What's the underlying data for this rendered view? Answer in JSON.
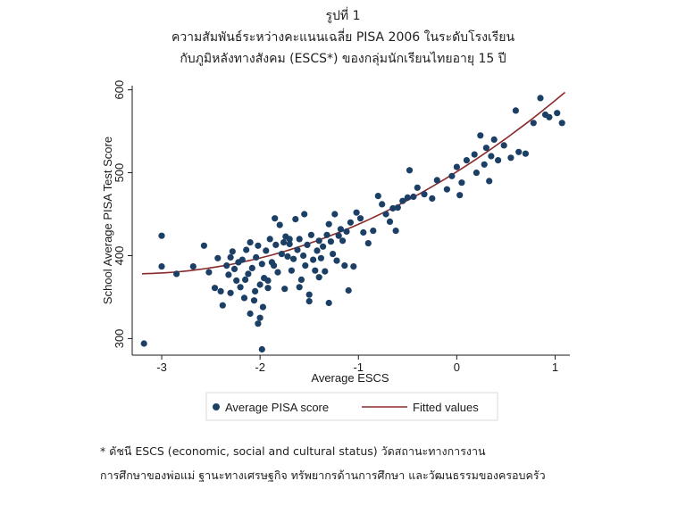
{
  "title": {
    "line1": "รูปที่ 1",
    "line2": "ความสัมพันธ์ระหว่างคะแนนเฉลี่ย PISA 2006 ในระดับโรงเรียน",
    "line3": "กับภูมิหลังทางสังคม (ESCS*) ของกลุ่มนักเรียนไทยอายุ 15 ปี"
  },
  "chart_data": {
    "type": "scatter",
    "xlabel": "Average ESCS",
    "ylabel": "School Average PISA Test Score",
    "xlim": [
      -3.3,
      1.15
    ],
    "ylim": [
      280,
      605
    ],
    "x_ticks": [
      -3,
      -2,
      -1,
      0,
      1
    ],
    "y_ticks": [
      300,
      400,
      500,
      600
    ],
    "x_tick_labels": [
      "-3",
      "-2",
      "-1",
      "0",
      "1"
    ],
    "y_tick_labels": [
      "300",
      "400",
      "500",
      "600"
    ],
    "grid": false,
    "legend_position": "bottom",
    "legend": [
      "Average PISA score",
      "Fitted values"
    ],
    "colors": {
      "points": "#1c3f66",
      "fitted": "#8b2a2a",
      "plot_bg": "#ffffff",
      "outer_bg": "#ffffff"
    },
    "series": [
      {
        "name": "Average PISA score",
        "kind": "scatter",
        "points": [
          [
            -3.18,
            294
          ],
          [
            -3.0,
            424
          ],
          [
            -3.0,
            387
          ],
          [
            -2.85,
            378
          ],
          [
            -2.68,
            387
          ],
          [
            -2.57,
            412
          ],
          [
            -2.52,
            380
          ],
          [
            -2.46,
            361
          ],
          [
            -2.43,
            397
          ],
          [
            -2.4,
            357
          ],
          [
            -2.38,
            340
          ],
          [
            -2.34,
            388
          ],
          [
            -2.32,
            377
          ],
          [
            -2.3,
            398
          ],
          [
            -2.28,
            405
          ],
          [
            -2.26,
            384
          ],
          [
            -2.24,
            370
          ],
          [
            -2.22,
            392
          ],
          [
            -2.2,
            362
          ],
          [
            -2.18,
            395
          ],
          [
            -2.16,
            349
          ],
          [
            -2.14,
            407
          ],
          [
            -2.12,
            378
          ],
          [
            -2.1,
            416
          ],
          [
            -2.08,
            385
          ],
          [
            -2.06,
            346
          ],
          [
            -2.04,
            398
          ],
          [
            -2.02,
            412
          ],
          [
            -2.0,
            365
          ],
          [
            -1.98,
            390
          ],
          [
            -1.96,
            373
          ],
          [
            -1.94,
            406
          ],
          [
            -1.92,
            361
          ],
          [
            -1.9,
            420
          ],
          [
            -1.88,
            392
          ],
          [
            -1.86,
            388
          ],
          [
            -1.84,
            413
          ],
          [
            -1.82,
            380
          ],
          [
            -1.8,
            437
          ],
          [
            -1.78,
            402
          ],
          [
            -1.76,
            416
          ],
          [
            -1.74,
            423
          ],
          [
            -1.72,
            399
          ],
          [
            -1.7,
            414
          ],
          [
            -1.68,
            382
          ],
          [
            -1.66,
            396
          ],
          [
            -1.64,
            444
          ],
          [
            -1.62,
            407
          ],
          [
            -1.6,
            420
          ],
          [
            -1.58,
            371
          ],
          [
            -1.56,
            400
          ],
          [
            -1.54,
            388
          ],
          [
            -1.52,
            413
          ],
          [
            -1.5,
            353
          ],
          [
            -1.48,
            425
          ],
          [
            -1.46,
            395
          ],
          [
            -1.44,
            382
          ],
          [
            -1.42,
            406
          ],
          [
            -1.4,
            418
          ],
          [
            -1.38,
            397
          ],
          [
            -1.36,
            411
          ],
          [
            -1.34,
            381
          ],
          [
            -1.32,
            425
          ],
          [
            -1.3,
            343
          ],
          [
            -1.28,
            417
          ],
          [
            -1.26,
            402
          ],
          [
            -1.24,
            450
          ],
          [
            -1.22,
            394
          ],
          [
            -1.2,
            424
          ],
          [
            -1.18,
            432
          ],
          [
            -1.16,
            418
          ],
          [
            -1.14,
            388
          ],
          [
            -1.12,
            429
          ],
          [
            -1.1,
            358
          ],
          [
            -1.08,
            440
          ],
          [
            -1.05,
            387
          ],
          [
            -1.02,
            452
          ],
          [
            -0.98,
            445
          ],
          [
            -0.95,
            428
          ],
          [
            -0.9,
            415
          ],
          [
            -0.85,
            430
          ],
          [
            -0.8,
            472
          ],
          [
            -0.76,
            462
          ],
          [
            -0.72,
            450
          ],
          [
            -0.68,
            441
          ],
          [
            -0.65,
            457
          ],
          [
            -0.62,
            430
          ],
          [
            -0.6,
            458
          ],
          [
            -0.55,
            466
          ],
          [
            -0.5,
            470
          ],
          [
            -0.48,
            503
          ],
          [
            -0.44,
            471
          ],
          [
            -0.4,
            482
          ],
          [
            -0.33,
            474
          ],
          [
            -0.25,
            469
          ],
          [
            -0.2,
            491
          ],
          [
            -0.1,
            480
          ],
          [
            -0.05,
            496
          ],
          [
            0.0,
            507
          ],
          [
            0.03,
            473
          ],
          [
            0.05,
            488
          ],
          [
            0.1,
            515
          ],
          [
            0.18,
            522
          ],
          [
            0.2,
            500
          ],
          [
            0.24,
            545
          ],
          [
            0.28,
            510
          ],
          [
            0.3,
            530
          ],
          [
            0.33,
            490
          ],
          [
            0.35,
            520
          ],
          [
            0.38,
            540
          ],
          [
            0.42,
            515
          ],
          [
            0.48,
            533
          ],
          [
            0.55,
            518
          ],
          [
            0.6,
            575
          ],
          [
            0.63,
            525
          ],
          [
            0.7,
            523
          ],
          [
            0.78,
            560
          ],
          [
            0.85,
            590
          ],
          [
            0.9,
            570
          ],
          [
            0.94,
            567
          ],
          [
            1.02,
            572
          ],
          [
            1.07,
            560
          ],
          [
            -2.0,
            325
          ],
          [
            -2.02,
            318
          ],
          [
            -1.97,
            338
          ],
          [
            -2.1,
            330
          ],
          [
            -1.98,
            287
          ],
          [
            -2.3,
            355
          ],
          [
            -1.75,
            360
          ],
          [
            -1.5,
            345
          ],
          [
            -1.6,
            362
          ],
          [
            -1.92,
            370
          ],
          [
            -2.15,
            371
          ],
          [
            -2.05,
            357
          ],
          [
            -1.4,
            374
          ],
          [
            -1.7,
            420
          ],
          [
            -1.55,
            450
          ],
          [
            -1.85,
            445
          ],
          [
            -1.3,
            438
          ]
        ]
      },
      {
        "name": "Fitted values",
        "kind": "line",
        "coefficients": [
          501.2,
          74.6,
          11.3
        ]
      }
    ]
  },
  "footnote": {
    "line1": "* ดัชนี ESCS (economic, social and cultural status) วัดสถานะทางการงาน",
    "line2": "การศึกษาของพ่อแม่ ฐานะทางเศรษฐกิจ ทรัพยากรด้านการศึกษา และวัฒนธรรมของครอบครัว"
  }
}
